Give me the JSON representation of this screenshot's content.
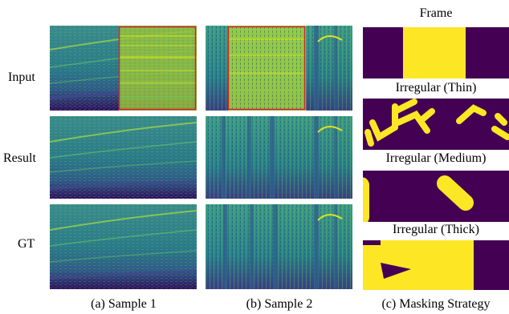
{
  "row_labels": {
    "input": "Input",
    "result": "Result",
    "gt": "GT"
  },
  "captions": {
    "sample1": "(a) Sample 1",
    "sample2": "(b) Sample 2",
    "masking": "(c) Masking Strategy"
  },
  "mask_titles": {
    "frame": "Frame",
    "thin": "Irregular (Thin)",
    "medium": "Irregular (Medium)",
    "thick": "Irregular (Thick)"
  },
  "colors": {
    "mask_background": "#440154",
    "mask_foreground": "#fde725",
    "spectrogram_low": "#30105e",
    "spectrogram_mid": "#21908d",
    "spectrogram_high": "#bddf26",
    "mask_box": "#d1242c"
  }
}
